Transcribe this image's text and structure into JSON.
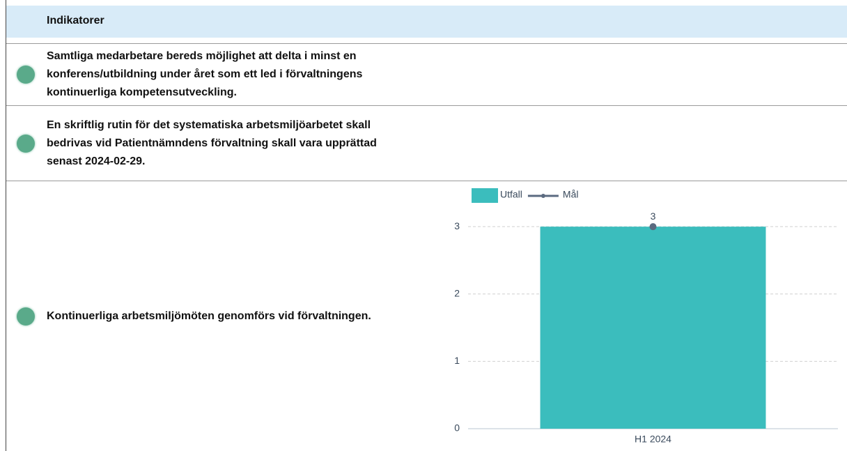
{
  "table": {
    "header": "Indikatorer",
    "rows": [
      "Samtliga medarbetare bereds möjlighet att delta i minst en konferens/utbildning under året som ett led i förvaltningens kontinuerliga kompetensutveckling.",
      "En skriftlig rutin för det systematiska arbetsmiljöarbetet skall bedrivas vid Patientnämndens förvaltning skall vara upprättad senast 2024-02-29.",
      "Kontinuerliga arbetsmiljömöten genomförs vid förvaltningen."
    ]
  },
  "chart_data": {
    "type": "bar",
    "categories": [
      "H1 2024"
    ],
    "series": [
      {
        "name": "Utfall",
        "color": "#3bbdbd",
        "values": [
          3
        ]
      },
      {
        "name": "Mål",
        "color": "#5b6a80",
        "values": [
          3
        ],
        "type": "line"
      }
    ],
    "ylim": [
      0,
      3.25
    ],
    "yticks": [
      0,
      1,
      2,
      3
    ],
    "grid": true
  }
}
